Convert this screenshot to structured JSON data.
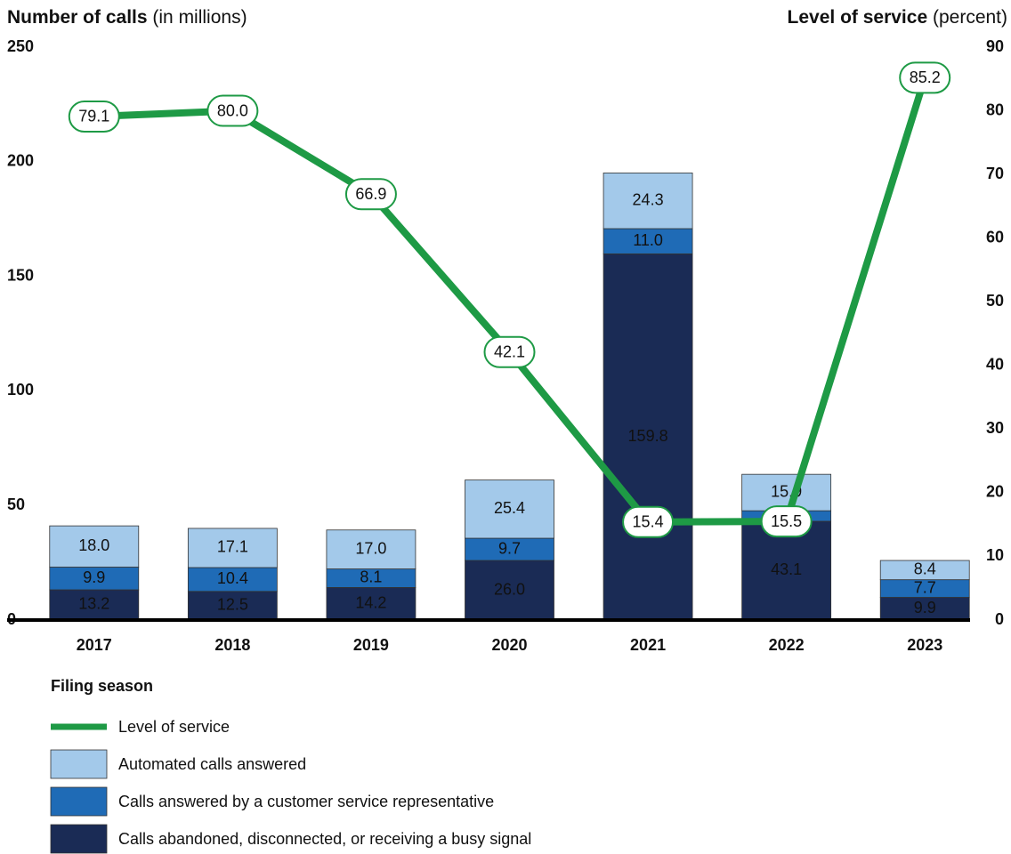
{
  "chart_data": {
    "type": "stacked-bar-line",
    "y_axis_title": "Number of calls",
    "y_axis_unit": "(in millions)",
    "y2_axis_title": "Level of service",
    "y2_axis_unit": "(percent)",
    "x_axis_title": "Filing season",
    "categories": [
      "2017",
      "2018",
      "2019",
      "2020",
      "2021",
      "2022",
      "2023"
    ],
    "ylim": [
      0,
      250
    ],
    "yticks": [
      0,
      50,
      100,
      150,
      200,
      250
    ],
    "y2lim": [
      0,
      90
    ],
    "y2ticks": [
      0,
      10,
      20,
      30,
      40,
      50,
      60,
      70,
      80,
      90
    ],
    "series": [
      {
        "name": "Level of service",
        "type": "line",
        "axis": "y2",
        "color": "#1e9a45",
        "values": [
          79.1,
          80.0,
          66.9,
          42.1,
          15.4,
          15.5,
          85.2
        ],
        "value_labels": [
          "79.1",
          "80.0",
          "66.9",
          "42.1",
          "15.4",
          "15.5",
          "85.2"
        ]
      },
      {
        "name": "Automated calls answered",
        "type": "bar",
        "color": "#a3c9ea",
        "label_color": "#1a2b55",
        "values": [
          18.0,
          17.1,
          17.0,
          25.4,
          24.3,
          15.9,
          8.4
        ],
        "value_labels": [
          "18.0",
          "17.1",
          "17.0",
          "25.4",
          "24.3",
          "15.9",
          "8.4"
        ]
      },
      {
        "name": "Calls answered by a customer service representative",
        "type": "bar",
        "color": "#1f6bb6",
        "label_color": "#ffffff",
        "values": [
          9.9,
          10.4,
          8.1,
          9.7,
          11.0,
          4.6,
          7.7
        ],
        "value_labels": [
          "9.9",
          "10.4",
          "8.1",
          "9.7",
          "11.0",
          "4.6",
          "7.7"
        ]
      },
      {
        "name": "Calls abandoned, disconnected, or receiving a busy signal",
        "type": "bar",
        "color": "#1a2b55",
        "label_color": "#ffffff",
        "values": [
          13.2,
          12.5,
          14.2,
          26.0,
          159.8,
          43.1,
          9.9
        ],
        "value_labels": [
          "13.2",
          "12.5",
          "14.2",
          "26.0",
          "159.8",
          "43.1",
          "9.9"
        ]
      }
    ]
  }
}
